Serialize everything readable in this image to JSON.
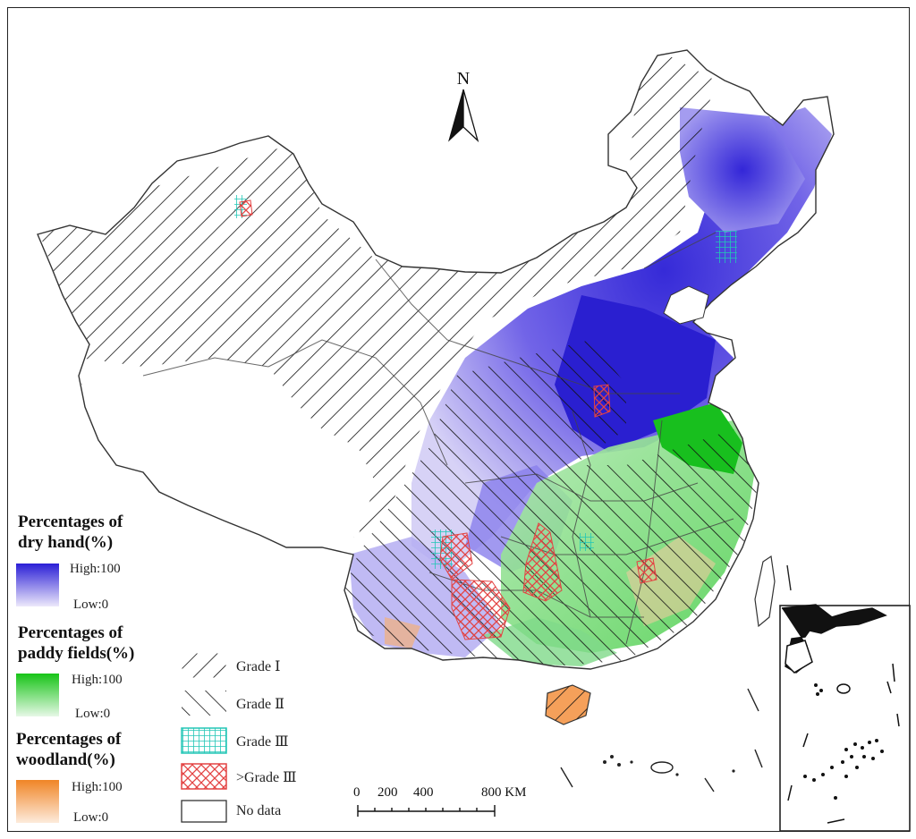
{
  "north_arrow": {
    "label": "N",
    "icon": "north-arrow-icon"
  },
  "legend": {
    "dry_land": {
      "title_line1": "Percentages of",
      "title_line2": "dry hand(%)",
      "high": "High:100",
      "low": "Low:0",
      "color_high": "#2b1fd6",
      "color_low": "#ece8fb"
    },
    "paddy": {
      "title_line1": "Percentages of",
      "title_line2": "paddy fields(%)",
      "high": "High:100",
      "low": "Low:0",
      "color_high": "#17c417",
      "color_low": "#e6f8e6"
    },
    "woodland": {
      "title_line1": "Percentages of",
      "title_line2": "woodland(%)",
      "high": "High:100",
      "low": "Low:0",
      "color_high": "#f08526",
      "color_low": "#fdebdc"
    }
  },
  "grades": [
    {
      "label": "Grade Ⅰ",
      "pattern": "forward-diagonal-hatch"
    },
    {
      "label": "Grade Ⅱ",
      "pattern": "back-diagonal-hatch"
    },
    {
      "label": "Grade Ⅲ",
      "pattern": "cyan-grid",
      "color": "#22c6b6"
    },
    {
      "label": ">Grade Ⅲ",
      "pattern": "red-crosshatch",
      "color": "#e34343"
    },
    {
      "label": "No data",
      "pattern": "empty"
    }
  ],
  "scale_bar": {
    "ticks": [
      "0",
      "200",
      "400",
      "800 KM"
    ]
  }
}
